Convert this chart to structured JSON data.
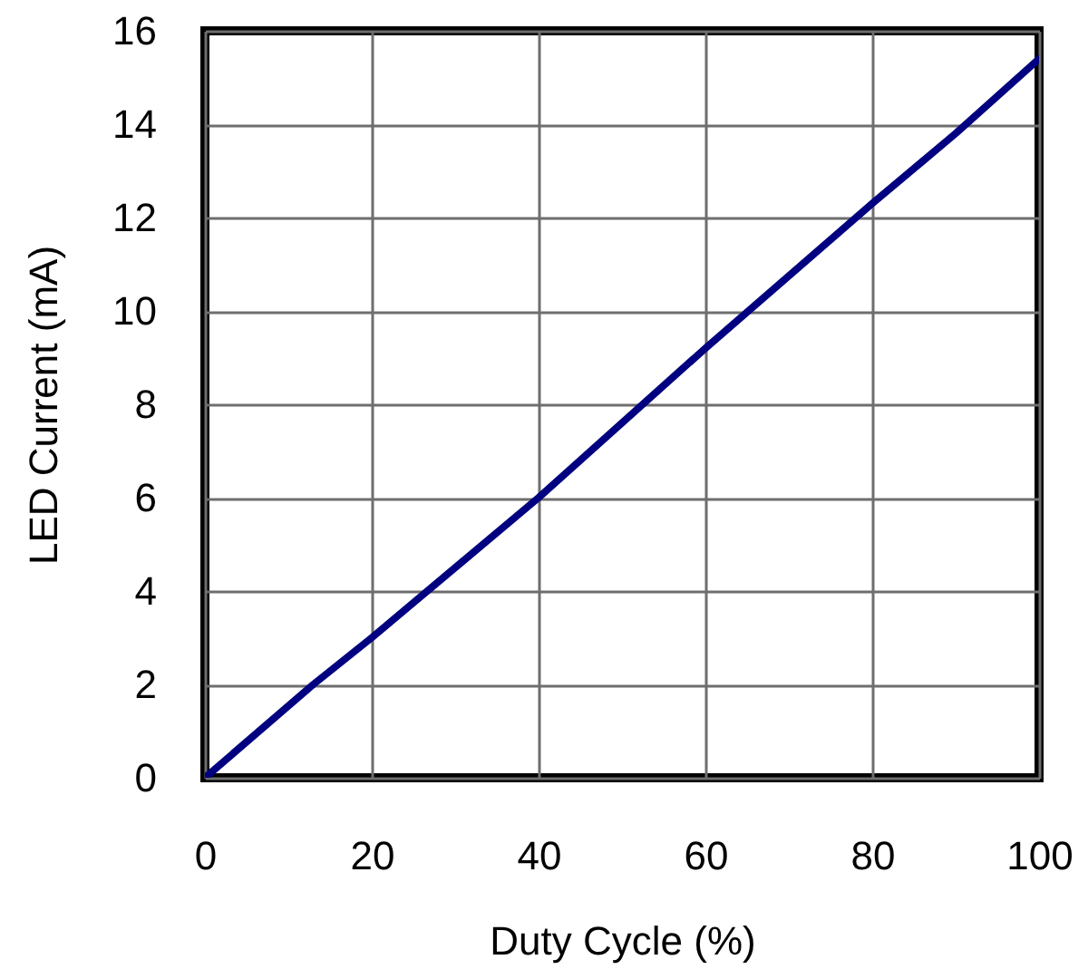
{
  "chart_data": {
    "type": "line",
    "xlabel": "Duty Cycle (%)",
    "ylabel": "LED Current (mA)",
    "x": [
      0,
      13,
      20,
      40,
      60,
      80,
      90,
      100
    ],
    "series": [
      {
        "color": "#000080",
        "values": [
          0,
          2.0,
          3.0,
          6.0,
          9.2,
          12.3,
          13.8,
          15.4
        ]
      }
    ],
    "xlim": [
      0,
      100
    ],
    "ylim": [
      0,
      16
    ],
    "xticks": [
      0,
      20,
      40,
      60,
      80,
      100
    ],
    "yticks": [
      0,
      2,
      4,
      6,
      8,
      10,
      12,
      14,
      16
    ],
    "grid": true,
    "line_style": "solid"
  }
}
